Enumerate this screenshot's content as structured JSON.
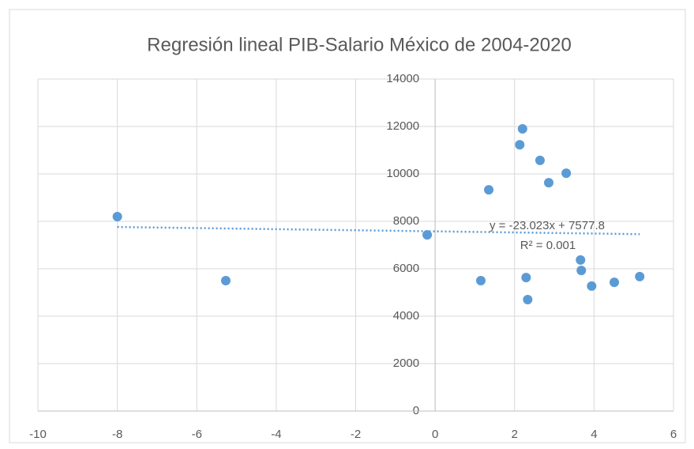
{
  "chart_data": {
    "type": "scatter",
    "title": "Regresión lineal PIB-Salario México de 2004-2020",
    "series": [
      {
        "color": "#5b9bd5",
        "x": [
          -8,
          -5.27,
          -0.2,
          1.15,
          1.35,
          2.13,
          2.2,
          2.29,
          2.33,
          2.64,
          2.86,
          3.3,
          3.66,
          3.68,
          3.94,
          4.51,
          5.15
        ],
        "values": [
          8200,
          5500,
          7430,
          5500,
          9330,
          11230,
          11900,
          5630,
          4700,
          10570,
          9630,
          10030,
          6370,
          5930,
          5270,
          5430,
          5670
        ]
      }
    ],
    "trendline": {
      "slope": -23.023,
      "intercept": 7577.8,
      "equation": "y = -23.023x + 7577.8",
      "r2": "R² = 0.001",
      "color": "#5b9bd5"
    },
    "xlim": [
      -10,
      6
    ],
    "xticks": [
      -10,
      -8,
      -6,
      -4,
      -2,
      0,
      2,
      4,
      6
    ],
    "ylim": [
      0,
      14000
    ],
    "yticks": [
      0,
      2000,
      4000,
      6000,
      8000,
      10000,
      12000,
      14000
    ],
    "grid": true
  }
}
